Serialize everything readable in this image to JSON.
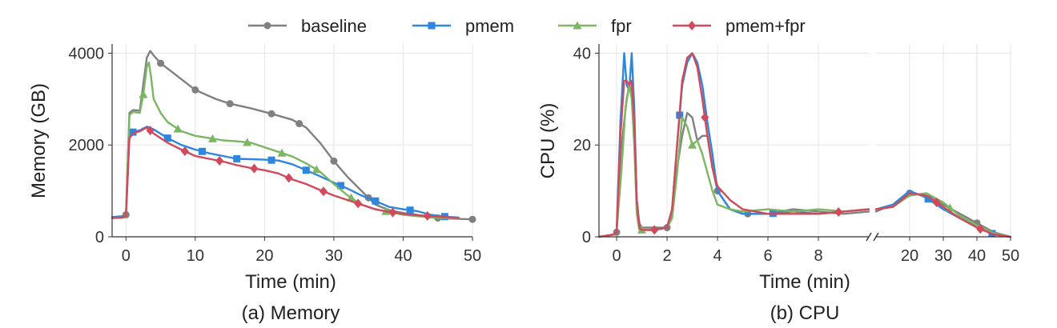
{
  "legend": [
    {
      "name": "baseline",
      "color": "#808080",
      "marker": "circle"
    },
    {
      "name": "pmem",
      "color": "#2e86de",
      "marker": "square"
    },
    {
      "name": "fpr",
      "color": "#7bb662",
      "marker": "triangle"
    },
    {
      "name": "pmem+fpr",
      "color": "#d1495b",
      "marker": "diamond"
    }
  ],
  "chart_data": [
    {
      "type": "line",
      "caption": "(a) Memory",
      "xlabel": "Time (min)",
      "ylabel": "Memory (GB)",
      "xlim": [
        -2,
        50
      ],
      "ylim": [
        0,
        4200
      ],
      "xticks": [
        0,
        10,
        20,
        30,
        40,
        50
      ],
      "yticks": [
        0,
        2000,
        4000
      ],
      "grid": true,
      "series": [
        {
          "name": "baseline",
          "color": "#808080",
          "marker": "circle",
          "x": [
            -2,
            -0.5,
            0,
            0.5,
            1,
            2,
            3,
            3.5,
            4,
            5,
            7,
            10,
            13,
            15,
            18,
            21,
            24,
            26,
            28,
            30,
            32,
            34,
            36,
            38,
            40,
            42,
            44,
            46,
            48,
            50
          ],
          "y": [
            430,
            450,
            480,
            2700,
            2760,
            2750,
            3900,
            4050,
            3950,
            3780,
            3550,
            3200,
            3000,
            2900,
            2800,
            2680,
            2550,
            2380,
            2050,
            1650,
            1300,
            1000,
            700,
            580,
            520,
            480,
            420,
            400,
            390,
            380
          ],
          "mx": [
            0,
            5,
            10,
            15,
            21,
            25,
            30,
            35,
            45,
            50
          ]
        },
        {
          "name": "pmem",
          "color": "#2e86de",
          "marker": "square",
          "x": [
            -2,
            -0.5,
            0,
            0.5,
            1,
            2,
            3,
            4,
            6,
            8,
            10,
            12,
            14,
            16,
            18,
            20,
            22,
            24,
            26,
            28,
            30,
            32,
            34,
            36,
            38,
            40,
            42,
            44,
            46,
            48
          ],
          "y": [
            420,
            440,
            460,
            2200,
            2280,
            2320,
            2400,
            2340,
            2150,
            2000,
            1900,
            1820,
            1760,
            1700,
            1690,
            1680,
            1660,
            1580,
            1450,
            1320,
            1180,
            1050,
            900,
            780,
            650,
            600,
            560,
            480,
            440,
            420
          ],
          "mx": [
            1,
            6,
            11,
            16,
            21,
            26,
            31,
            36,
            41,
            46
          ]
        },
        {
          "name": "fpr",
          "color": "#7bb662",
          "marker": "triangle",
          "x": [
            -2,
            -0.5,
            0,
            0.5,
            1,
            2,
            2.5,
            3,
            3.3,
            3.6,
            4,
            5,
            6,
            8,
            10,
            12,
            14,
            16,
            18,
            20,
            22,
            24,
            26,
            28,
            30,
            32,
            34,
            36,
            38,
            40,
            42,
            44,
            46,
            48
          ],
          "y": [
            410,
            420,
            440,
            2650,
            2720,
            2700,
            3100,
            3700,
            3800,
            3500,
            3000,
            2700,
            2500,
            2300,
            2200,
            2150,
            2100,
            2080,
            2050,
            1950,
            1850,
            1750,
            1600,
            1420,
            1150,
            900,
            700,
            600,
            540,
            480,
            450,
            420,
            410,
            400
          ],
          "mx": [
            2.5,
            7.5,
            12.5,
            17.5,
            22.5,
            27.5,
            32.5,
            37.5
          ]
        },
        {
          "name": "pmem+fpr",
          "color": "#d1495b",
          "marker": "diamond",
          "x": [
            -2,
            -0.5,
            0,
            0.5,
            1,
            2,
            3,
            4,
            6,
            8,
            10,
            12,
            14,
            16,
            18,
            20,
            22,
            24,
            26,
            28,
            30,
            32,
            34,
            36,
            38,
            40,
            42,
            44,
            46,
            48
          ],
          "y": [
            410,
            420,
            450,
            2150,
            2250,
            2300,
            2380,
            2250,
            2050,
            1900,
            1760,
            1700,
            1640,
            1560,
            1500,
            1450,
            1380,
            1250,
            1150,
            1020,
            900,
            800,
            700,
            600,
            540,
            500,
            470,
            450,
            430,
            410
          ],
          "mx": [
            3.5,
            8.5,
            13.5,
            18.5,
            23.5,
            28.5,
            33.5,
            38.5,
            43.5
          ]
        }
      ]
    },
    {
      "type": "line",
      "caption": "(b) CPU",
      "xlabel": "Time (min)",
      "ylabel": "CPU (%)",
      "broken_x_axis": true,
      "left_xlim": [
        -0.7,
        10
      ],
      "right_xlim": [
        10,
        50
      ],
      "ylim": [
        0,
        42
      ],
      "left_xticks": [
        0,
        2,
        4,
        6,
        8
      ],
      "right_xticks": [
        20,
        30,
        40,
        50
      ],
      "yticks": [
        0,
        20,
        40
      ],
      "grid": true,
      "series": [
        {
          "name": "baseline",
          "color": "#808080",
          "marker": "circle",
          "x": [
            -0.7,
            -0.1,
            0,
            0.2,
            0.4,
            0.5,
            0.6,
            0.7,
            0.8,
            0.9,
            1.0,
            1.5,
            2.0,
            2.2,
            2.4,
            2.6,
            2.8,
            3.0,
            3.2,
            3.4,
            3.6,
            3.8,
            4.0,
            4.5,
            5.0,
            6,
            7,
            8,
            9,
            10,
            15,
            20,
            25,
            30,
            35,
            40,
            45,
            50
          ],
          "y": [
            0,
            0.5,
            1,
            20,
            30,
            33,
            32,
            22,
            8,
            3,
            2,
            2,
            2,
            5,
            15,
            22,
            27,
            26,
            21,
            22,
            22,
            15,
            10,
            6,
            5,
            5,
            6,
            5.5,
            5,
            5.5,
            7,
            9.5,
            9,
            7,
            5,
            3,
            1,
            0
          ],
          "mx": [
            0,
            2,
            4,
            5.2,
            20,
            40
          ]
        },
        {
          "name": "pmem",
          "color": "#2e86de",
          "marker": "square",
          "x": [
            -0.7,
            -0.1,
            0,
            0.15,
            0.3,
            0.4,
            0.5,
            0.6,
            0.7,
            0.8,
            0.9,
            1.0,
            1.5,
            2.0,
            2.2,
            2.4,
            2.6,
            2.8,
            3.0,
            3.2,
            3.4,
            3.6,
            3.8,
            4.0,
            4.5,
            5.0,
            6,
            7,
            8,
            9,
            10,
            15,
            20,
            25,
            30,
            35,
            40,
            45,
            50
          ],
          "y": [
            0,
            0.5,
            1,
            25,
            40,
            33,
            32,
            40,
            28,
            8,
            2,
            1.5,
            1.5,
            2,
            6,
            20,
            33,
            38,
            40,
            38,
            33,
            25,
            18,
            10,
            6,
            5,
            5,
            5.5,
            5,
            5.5,
            6,
            7,
            10,
            8.5,
            6,
            4,
            2.5,
            0.5,
            0
          ],
          "mx": [
            2.5,
            6.2,
            25.5,
            44.5
          ]
        },
        {
          "name": "fpr",
          "color": "#7bb662",
          "marker": "triangle",
          "x": [
            -0.7,
            -0.1,
            0,
            0.2,
            0.35,
            0.5,
            0.6,
            0.7,
            0.8,
            0.9,
            1.0,
            1.5,
            2.0,
            2.2,
            2.4,
            2.6,
            2.8,
            3.0,
            3.2,
            3.4,
            3.6,
            3.8,
            4.0,
            4.5,
            5.0,
            6,
            7,
            8,
            9,
            10,
            15,
            20,
            25,
            30,
            35,
            40,
            45,
            50
          ],
          "y": [
            0,
            0.5,
            1,
            15,
            28,
            33,
            30,
            20,
            5,
            1.5,
            1.5,
            1.5,
            2,
            4,
            14,
            26,
            24,
            20,
            21,
            18,
            14,
            10,
            7,
            6,
            5.5,
            6,
            5.5,
            6,
            5.5,
            6,
            6.5,
            9,
            9.5,
            7.5,
            4.5,
            2.5,
            0.8,
            0
          ],
          "mx": [
            1,
            3,
            32
          ]
        },
        {
          "name": "pmem+fpr",
          "color": "#d1495b",
          "marker": "diamond",
          "x": [
            -0.7,
            -0.1,
            0,
            0.15,
            0.3,
            0.4,
            0.5,
            0.6,
            0.7,
            0.8,
            0.9,
            1.0,
            1.5,
            2.0,
            2.2,
            2.4,
            2.6,
            2.8,
            3.0,
            3.2,
            3.4,
            3.6,
            3.8,
            4.0,
            4.5,
            5.0,
            6,
            7,
            8,
            9,
            10,
            15,
            20,
            25,
            30,
            35,
            40,
            45,
            50
          ],
          "y": [
            0,
            0.5,
            1,
            22,
            34,
            34,
            33,
            34,
            25,
            8,
            2,
            1.5,
            1.5,
            2,
            6,
            20,
            34,
            39,
            40,
            37,
            30,
            22,
            15,
            11,
            8,
            6,
            5,
            5,
            5,
            5.5,
            6,
            6.5,
            9.5,
            9,
            6.5,
            4,
            2,
            0.5,
            0
          ],
          "mx": [
            1.5,
            3.5,
            8.8,
            28,
            41
          ]
        }
      ]
    }
  ]
}
